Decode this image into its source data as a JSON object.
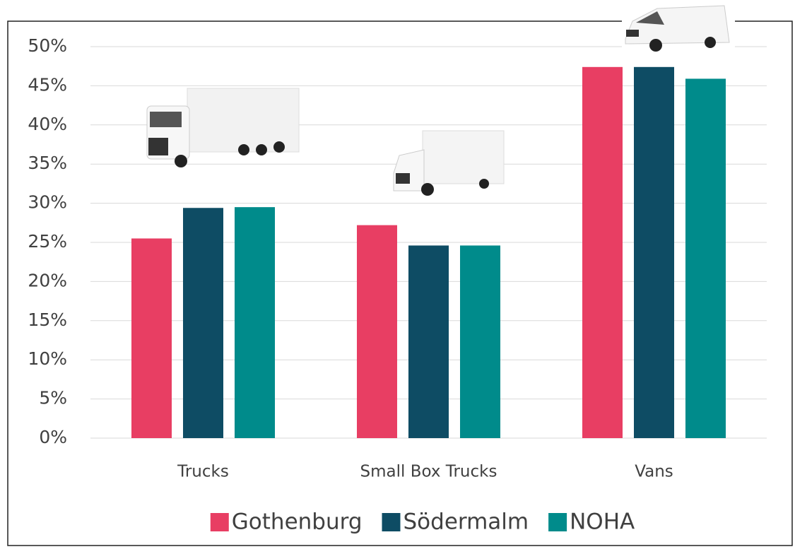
{
  "chart_data": {
    "type": "bar",
    "categories": [
      "Trucks",
      "Small Box Trucks",
      "Vans"
    ],
    "series": [
      {
        "name": "Gothenburg",
        "color": "#e83e63",
        "values": [
          25.5,
          27.2,
          47.4
        ]
      },
      {
        "name": "Södermalm",
        "color": "#0e4c64",
        "values": [
          29.4,
          24.6,
          47.4
        ]
      },
      {
        "name": "NOHA",
        "color": "#008b8b",
        "values": [
          29.5,
          24.6,
          45.9
        ]
      }
    ],
    "ylim": [
      0,
      50
    ],
    "yticks": [
      {
        "value": 0,
        "label": "0%"
      },
      {
        "value": 5,
        "label": "5%"
      },
      {
        "value": 10,
        "label": "10%"
      },
      {
        "value": 15,
        "label": "15%"
      },
      {
        "value": 20,
        "label": "20%"
      },
      {
        "value": 25,
        "label": "25%"
      },
      {
        "value": 30,
        "label": "30%"
      },
      {
        "value": 35,
        "label": "35%"
      },
      {
        "value": 40,
        "label": "40%"
      },
      {
        "value": 45,
        "label": "45%"
      },
      {
        "value": 50,
        "label": "50%"
      }
    ],
    "grid": true,
    "legend": "bottom"
  }
}
